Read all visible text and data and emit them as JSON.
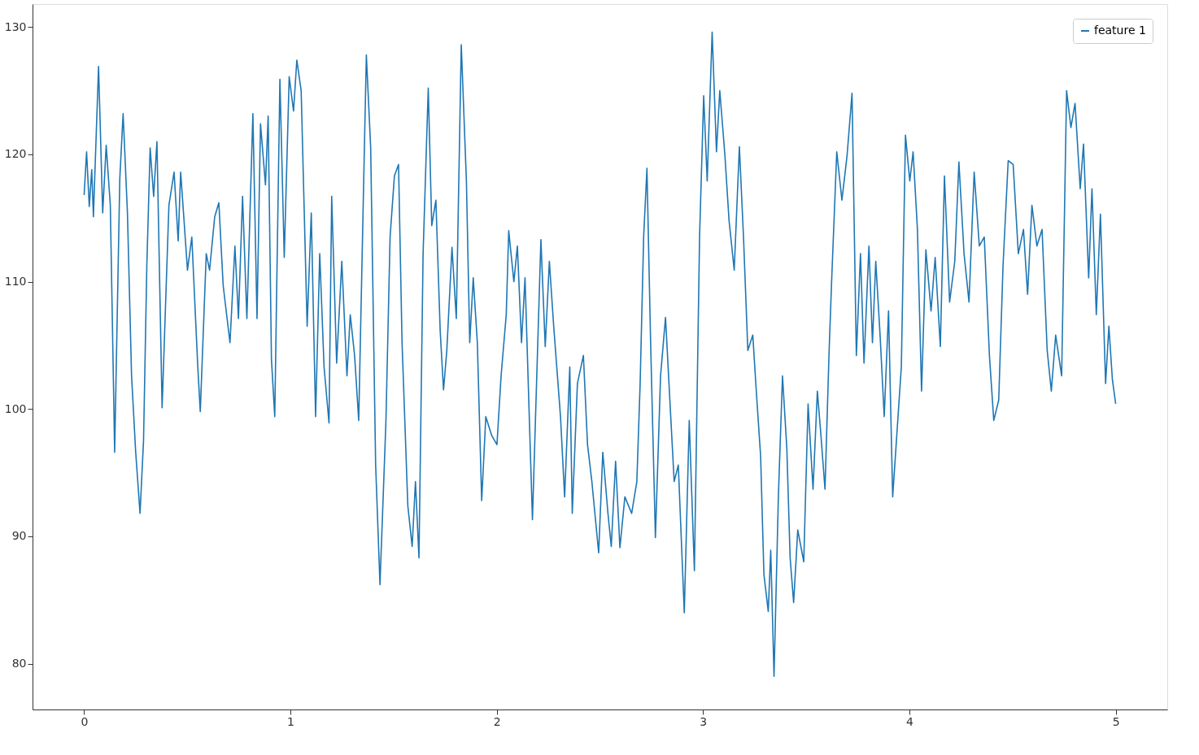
{
  "chart_data": {
    "type": "line",
    "xlim": [
      -0.25,
      5.25
    ],
    "ylim": [
      76.4,
      131.8
    ],
    "xticks": [
      0,
      1,
      2,
      3,
      4,
      5
    ],
    "yticks": [
      80,
      90,
      100,
      110,
      120,
      130
    ],
    "grid": false,
    "legend": "top right",
    "marker": "none",
    "line_style": "solid",
    "series": [
      {
        "name": "feature 1",
        "color": "#1f77b4",
        "x": [
          0,
          0.012,
          0.025,
          0.037,
          0.045,
          0.07,
          0.09,
          0.107,
          0.127,
          0.148,
          0.173,
          0.189,
          0.21,
          0.23,
          0.25,
          0.271,
          0.288,
          0.304,
          0.32,
          0.337,
          0.353,
          0.378,
          0.411,
          0.436,
          0.456,
          0.468,
          0.501,
          0.522,
          0.551,
          0.563,
          0.592,
          0.608,
          0.633,
          0.653,
          0.674,
          0.707,
          0.731,
          0.748,
          0.768,
          0.789,
          0.818,
          0.838,
          0.855,
          0.879,
          0.892,
          0.908,
          0.924,
          0.949,
          0.97,
          0.994,
          1.015,
          1.031,
          1.052,
          1.081,
          1.101,
          1.122,
          1.142,
          1.163,
          1.187,
          1.2,
          1.224,
          1.249,
          1.274,
          1.29,
          1.311,
          1.331,
          1.356,
          1.368,
          1.389,
          1.413,
          1.434,
          1.463,
          1.483,
          1.504,
          1.524,
          1.541,
          1.569,
          1.59,
          1.606,
          1.623,
          1.643,
          1.668,
          1.685,
          1.705,
          1.726,
          1.742,
          1.758,
          1.783,
          1.804,
          1.828,
          1.853,
          1.869,
          1.886,
          1.906,
          1.927,
          1.947,
          1.976,
          2.001,
          2.021,
          2.046,
          2.058,
          2.083,
          2.1,
          2.12,
          2.137,
          2.173,
          2.194,
          2.214,
          2.235,
          2.255,
          2.276,
          2.309,
          2.329,
          2.354,
          2.366,
          2.391,
          2.42,
          2.44,
          2.461,
          2.494,
          2.514,
          2.539,
          2.555,
          2.576,
          2.597,
          2.621,
          2.654,
          2.679,
          2.695,
          2.712,
          2.728,
          2.745,
          2.769,
          2.794,
          2.818,
          2.839,
          2.86,
          2.88,
          2.909,
          2.933,
          2.958,
          2.983,
          3.003,
          3.02,
          3.044,
          3.065,
          3.081,
          3.106,
          3.126,
          3.151,
          3.176,
          3.196,
          3.217,
          3.241,
          3.258,
          3.279,
          3.295,
          3.316,
          3.328,
          3.344,
          3.365,
          3.385,
          3.406,
          3.422,
          3.439,
          3.459,
          3.488,
          3.509,
          3.533,
          3.554,
          3.57,
          3.591,
          3.611,
          3.624,
          3.648,
          3.673,
          3.698,
          3.722,
          3.743,
          3.763,
          3.78,
          3.804,
          3.821,
          3.837,
          3.858,
          3.878,
          3.899,
          3.919,
          3.94,
          3.961,
          3.981,
          4.002,
          4.018,
          4.039,
          4.059,
          4.08,
          4.105,
          4.125,
          4.15,
          4.17,
          4.195,
          4.22,
          4.24,
          4.265,
          4.289,
          4.314,
          4.339,
          4.363,
          4.388,
          4.409,
          4.433,
          4.454,
          4.479,
          4.503,
          4.528,
          4.553,
          4.573,
          4.594,
          4.618,
          4.643,
          4.668,
          4.688,
          4.709,
          4.738,
          4.762,
          4.783,
          4.803,
          4.828,
          4.844,
          4.869,
          4.885,
          4.906,
          4.926,
          4.951,
          4.967,
          4.984,
          5.0
        ],
        "values": [
          116.8,
          120.2,
          115.9,
          118.8,
          115.1,
          126.9,
          115.4,
          120.7,
          116.0,
          96.6,
          118.1,
          123.2,
          115.4,
          102.6,
          96.6,
          91.8,
          97.5,
          111.3,
          120.5,
          116.7,
          121.0,
          100.1,
          116.0,
          118.6,
          113.2,
          118.6,
          110.9,
          113.5,
          103.3,
          99.8,
          112.2,
          110.9,
          115.1,
          116.2,
          109.7,
          105.2,
          112.8,
          107.1,
          116.7,
          107.1,
          123.2,
          107.1,
          122.4,
          117.6,
          123.0,
          103.9,
          99.4,
          125.9,
          111.9,
          126.1,
          123.4,
          127.4,
          125.0,
          106.5,
          115.4,
          99.4,
          112.2,
          103.3,
          98.9,
          116.7,
          103.6,
          111.6,
          102.6,
          107.4,
          104.2,
          99.1,
          118.6,
          127.8,
          120.5,
          95.6,
          86.2,
          99.1,
          113.5,
          118.3,
          119.2,
          105.2,
          92.4,
          89.2,
          94.3,
          88.3,
          112.2,
          125.2,
          114.4,
          116.4,
          106.1,
          101.5,
          104.6,
          112.7,
          107.1,
          128.6,
          117.9,
          105.2,
          110.3,
          105.2,
          92.8,
          99.4,
          97.9,
          97.2,
          102.6,
          107.4,
          114.0,
          110.0,
          112.8,
          105.2,
          110.3,
          91.3,
          102.6,
          113.3,
          104.9,
          111.6,
          106.5,
          99.4,
          93.1,
          103.3,
          91.8,
          102.0,
          104.2,
          97.2,
          94.3,
          88.7,
          96.6,
          91.8,
          89.2,
          95.9,
          89.1,
          93.1,
          91.8,
          94.3,
          102.0,
          113.5,
          118.9,
          105.8,
          89.9,
          102.6,
          107.2,
          100.7,
          94.3,
          95.6,
          84.0,
          99.1,
          87.3,
          113.5,
          124.6,
          117.9,
          129.6,
          120.2,
          125.0,
          119.9,
          114.8,
          110.9,
          120.6,
          113.5,
          104.6,
          105.8,
          101.4,
          96.3,
          87.0,
          84.1,
          88.9,
          79.0,
          93.1,
          102.6,
          96.9,
          88.3,
          84.8,
          90.5,
          88.0,
          100.4,
          93.7,
          101.4,
          98.2,
          93.7,
          104.6,
          110.4,
          120.2,
          116.4,
          119.9,
          124.8,
          104.2,
          112.2,
          103.6,
          112.8,
          105.2,
          111.6,
          105.8,
          99.4,
          107.7,
          93.1,
          98.2,
          103.3,
          121.5,
          117.9,
          120.2,
          114.1,
          101.4,
          112.5,
          107.7,
          111.9,
          104.9,
          118.3,
          108.4,
          111.6,
          119.4,
          112.2,
          108.4,
          118.6,
          112.8,
          113.5,
          104.2,
          99.1,
          100.7,
          111.3,
          119.5,
          119.2,
          112.2,
          114.1,
          109.0,
          116.0,
          112.8,
          114.1,
          104.6,
          101.4,
          105.8,
          102.6,
          125.0,
          122.1,
          124.0,
          117.3,
          120.8,
          110.3,
          117.3,
          107.4,
          115.3,
          102.0,
          106.5,
          102.3,
          100.4
        ]
      }
    ]
  }
}
